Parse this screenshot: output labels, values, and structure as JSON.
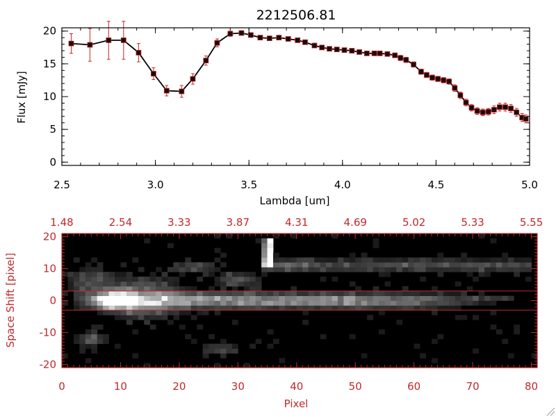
{
  "colors": {
    "axis": "#000000",
    "accent": "#c0282a",
    "marker": "#1a0a0a",
    "image_bg": "#000000"
  },
  "chart_data": [
    {
      "type": "line",
      "title": "2212506.81",
      "xlabel": "Lambda [um]",
      "ylabel": "Flux [mJy]",
      "xlim": [
        2.5,
        5.0
      ],
      "ylim": [
        -0.5,
        20.5
      ],
      "xticks": [
        2.5,
        3.0,
        3.5,
        4.0,
        4.5,
        5.0
      ],
      "xtick_labels": [
        "2.5",
        "3.0",
        "3.5",
        "4.0",
        "4.5",
        "5.0"
      ],
      "yticks": [
        0,
        5,
        10,
        15,
        20
      ],
      "ytick_labels": [
        "0",
        "5",
        "10",
        "15",
        "20"
      ],
      "grid": false,
      "series": [
        {
          "x": [
            2.55,
            2.65,
            2.75,
            2.83,
            2.91,
            2.99,
            3.06,
            3.14,
            3.2,
            3.27,
            3.33,
            3.4,
            3.46,
            3.51,
            3.56,
            3.61,
            3.66,
            3.71,
            3.76,
            3.8,
            3.85,
            3.89,
            3.93,
            3.97,
            4.01,
            4.05,
            4.09,
            4.13,
            4.17,
            4.2,
            4.24,
            4.28,
            4.31,
            4.34,
            4.38,
            4.42,
            4.45,
            4.48,
            4.51,
            4.54,
            4.57,
            4.6,
            4.63,
            4.66,
            4.69,
            4.72,
            4.75,
            4.78,
            4.81,
            4.84,
            4.87,
            4.9,
            4.93,
            4.96,
            4.98
          ],
          "y": [
            18.1,
            17.9,
            18.6,
            18.6,
            16.7,
            13.5,
            10.9,
            10.8,
            12.7,
            15.5,
            18.2,
            19.6,
            19.7,
            19.4,
            19.0,
            18.9,
            19.0,
            18.8,
            18.6,
            18.3,
            17.8,
            17.5,
            17.3,
            17.2,
            17.1,
            17.0,
            16.8,
            16.6,
            16.6,
            16.6,
            16.5,
            16.3,
            15.9,
            15.6,
            14.9,
            13.8,
            13.3,
            12.9,
            12.7,
            12.5,
            12.3,
            11.3,
            10.2,
            9.1,
            8.3,
            7.8,
            7.6,
            7.7,
            8.0,
            8.4,
            8.4,
            8.2,
            7.6,
            6.8,
            6.6
          ],
          "yerr": [
            1.5,
            2.5,
            2.9,
            2.9,
            1.4,
            0.9,
            0.8,
            0.9,
            0.8,
            0.7,
            0.6,
            0.4,
            0.3,
            0.3,
            0.3,
            0.3,
            0.3,
            0.3,
            0.3,
            0.3,
            0.3,
            0.3,
            0.3,
            0.3,
            0.3,
            0.3,
            0.3,
            0.3,
            0.3,
            0.3,
            0.3,
            0.3,
            0.4,
            0.4,
            0.4,
            0.4,
            0.4,
            0.4,
            0.4,
            0.4,
            0.4,
            0.5,
            0.5,
            0.5,
            0.5,
            0.5,
            0.5,
            0.5,
            0.6,
            0.6,
            0.6,
            0.6,
            0.6,
            0.6,
            0.6
          ]
        }
      ]
    },
    {
      "type": "heatmap",
      "xlabel": "Pixel",
      "ylabel": "Space Shift [pixel]",
      "xlim": [
        0,
        81
      ],
      "ylim": [
        -21,
        21
      ],
      "xticks": [
        0,
        10,
        20,
        30,
        40,
        50,
        60,
        70,
        80
      ],
      "xtick_labels": [
        "0",
        "10",
        "20",
        "30",
        "40",
        "50",
        "60",
        "70",
        "80"
      ],
      "yticks": [
        -20,
        -10,
        0,
        10,
        20
      ],
      "ytick_labels": [
        "-20",
        "-10",
        "0",
        "10",
        "20"
      ],
      "top_axis": {
        "label_positions": [
          0,
          10,
          20,
          30,
          40,
          50,
          60,
          70,
          80
        ],
        "tick_labels": [
          "1.48",
          "2.54",
          "3.33",
          "3.87",
          "4.31",
          "4.69",
          "5.02",
          "5.33",
          "5.55"
        ]
      },
      "extraction_window": [
        -3,
        3
      ],
      "grid": false,
      "colormap": "grayscale"
    }
  ]
}
